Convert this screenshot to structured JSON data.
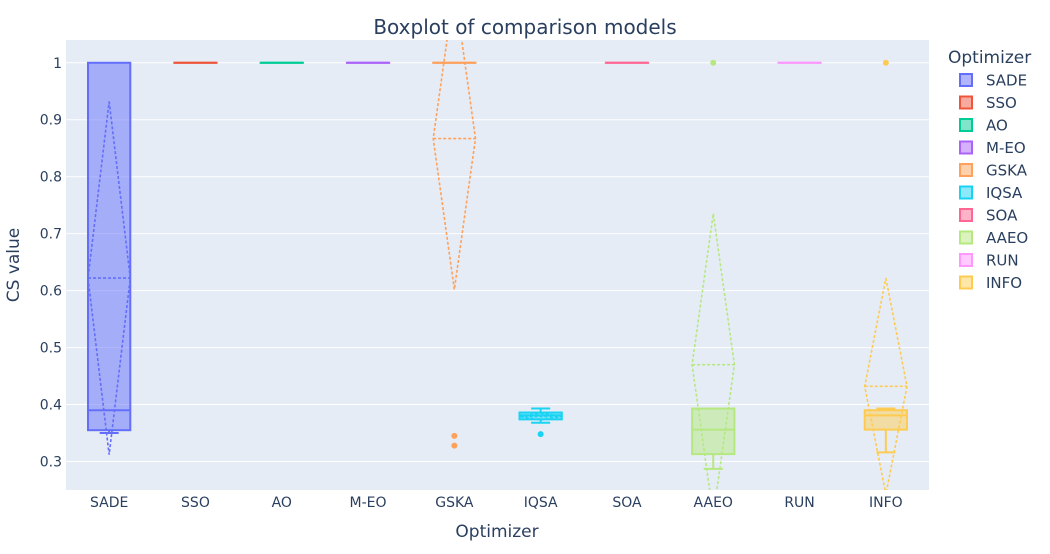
{
  "chart_data": {
    "type": "box",
    "title": "Boxplot of comparison models",
    "xlabel": "Optimizer",
    "ylabel": "CS value",
    "ylim": [
      0.25,
      1.04
    ],
    "yticks": [
      0.3,
      0.4,
      0.5,
      0.6,
      0.7,
      0.8,
      0.9,
      1
    ],
    "ytick_labels": [
      "0.3",
      "0.4",
      "0.5",
      "0.6",
      "0.7",
      "0.8",
      "0.9",
      "1"
    ],
    "grid": true,
    "legend_title": "Optimizer",
    "legend_position": "right",
    "categories": [
      "SADE",
      "SSO",
      "AO",
      "M-EO",
      "GSKA",
      "IQSA",
      "SOA",
      "AAEO",
      "RUN",
      "INFO"
    ],
    "series": [
      {
        "name": "SADE",
        "color": "#636efa",
        "q1": 0.355,
        "median": 0.39,
        "q3": 1.0,
        "lower_fence": 0.35,
        "upper_fence": 1.0,
        "mean": 0.622,
        "sd": 0.31,
        "outliers": []
      },
      {
        "name": "SSO",
        "color": "#ef553b",
        "q1": 1.0,
        "median": 1.0,
        "q3": 1.0,
        "lower_fence": 1.0,
        "upper_fence": 1.0,
        "mean": 1.0,
        "sd": 0.0,
        "outliers": []
      },
      {
        "name": "AO",
        "color": "#00cc96",
        "q1": 1.0,
        "median": 1.0,
        "q3": 1.0,
        "lower_fence": 1.0,
        "upper_fence": 1.0,
        "mean": 1.0,
        "sd": 0.0,
        "outliers": []
      },
      {
        "name": "M-EO",
        "color": "#ab63fa",
        "q1": 1.0,
        "median": 1.0,
        "q3": 1.0,
        "lower_fence": 1.0,
        "upper_fence": 1.0,
        "mean": 1.0,
        "sd": 0.0,
        "outliers": []
      },
      {
        "name": "GSKA",
        "color": "#ffa15a",
        "q1": 1.0,
        "median": 1.0,
        "q3": 1.0,
        "lower_fence": 1.0,
        "upper_fence": 1.0,
        "mean": 0.867,
        "sd": 0.265,
        "outliers": [
          0.345,
          0.328
        ]
      },
      {
        "name": "IQSA",
        "color": "#19d3f3",
        "q1": 0.374,
        "median": 0.381,
        "q3": 0.386,
        "lower_fence": 0.368,
        "upper_fence": 0.393,
        "mean": 0.379,
        "sd": 0.006,
        "outliers": [
          0.348
        ]
      },
      {
        "name": "SOA",
        "color": "#ff6692",
        "q1": 1.0,
        "median": 1.0,
        "q3": 1.0,
        "lower_fence": 1.0,
        "upper_fence": 1.0,
        "mean": 1.0,
        "sd": 0.0,
        "outliers": []
      },
      {
        "name": "AAEO",
        "color": "#b6e880",
        "q1": 0.313,
        "median": 0.356,
        "q3": 0.393,
        "lower_fence": 0.287,
        "upper_fence": 0.393,
        "mean": 0.47,
        "sd": 0.265,
        "outliers": [
          1.0
        ]
      },
      {
        "name": "RUN",
        "color": "#ff97ff",
        "q1": 1.0,
        "median": 1.0,
        "q3": 1.0,
        "lower_fence": 1.0,
        "upper_fence": 1.0,
        "mean": 1.0,
        "sd": 0.0,
        "outliers": []
      },
      {
        "name": "INFO",
        "color": "#fecb52",
        "q1": 0.356,
        "median": 0.381,
        "q3": 0.39,
        "lower_fence": 0.316,
        "upper_fence": 0.393,
        "mean": 0.432,
        "sd": 0.19,
        "outliers": [
          1.0
        ]
      }
    ]
  }
}
